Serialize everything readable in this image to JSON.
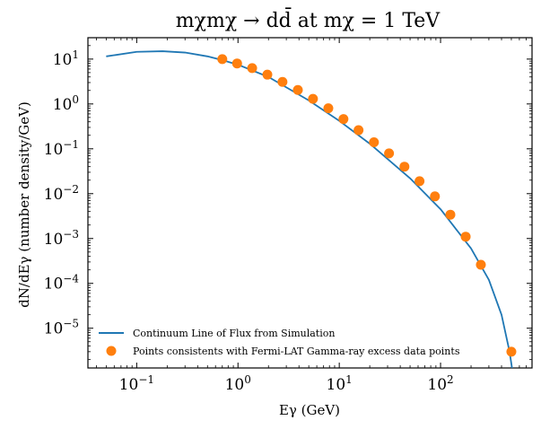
{
  "chart_data": {
    "type": "line",
    "title": "mχmχ → dd̄ at mχ = 1 TeV",
    "xlabel": "Eγ (GeV)",
    "ylabel": "dN/dEγ (number density/GeV)",
    "xscale": "log",
    "yscale": "log",
    "xlim": [
      0.033,
      800
    ],
    "ylim": [
      1.3e-06,
      30
    ],
    "xticks": [
      {
        "value": 0.1,
        "base": "10",
        "exp": "−1"
      },
      {
        "value": 1,
        "base": "10",
        "exp": "0"
      },
      {
        "value": 10,
        "base": "10",
        "exp": "1"
      },
      {
        "value": 100,
        "base": "10",
        "exp": "2"
      }
    ],
    "yticks": [
      {
        "value": 1e-05,
        "base": "10",
        "exp": "−5"
      },
      {
        "value": 0.0001,
        "base": "10",
        "exp": "−4"
      },
      {
        "value": 0.001,
        "base": "10",
        "exp": "−3"
      },
      {
        "value": 0.01,
        "base": "10",
        "exp": "−2"
      },
      {
        "value": 0.1,
        "base": "10",
        "exp": "−1"
      },
      {
        "value": 1,
        "base": "10",
        "exp": "0"
      },
      {
        "value": 10,
        "base": "10",
        "exp": "1"
      }
    ],
    "grid": false,
    "legend_position": "lower-left",
    "series": [
      {
        "name": "Continuum Line of Flux from Simulation",
        "kind": "line",
        "color": "#1f77b4",
        "x": [
          0.05,
          0.1,
          0.18,
          0.3,
          0.5,
          0.7,
          1.0,
          2.0,
          5.0,
          10,
          20,
          50,
          100,
          200,
          300,
          400,
          480,
          510
        ],
        "y": [
          11.5,
          14.5,
          15.0,
          14.0,
          11.5,
          9.5,
          7.5,
          4.0,
          1.2,
          0.42,
          0.13,
          0.022,
          0.0045,
          0.0006,
          0.00012,
          2e-05,
          3e-06,
          1.2e-06
        ]
      },
      {
        "name": "Points consistents with Fermi-LAT Gamma-ray excess data points",
        "kind": "scatter",
        "color": "#ff7f0e",
        "x": [
          0.7,
          0.98,
          1.38,
          1.95,
          2.75,
          3.9,
          5.5,
          7.8,
          11.0,
          15.5,
          22.0,
          31.0,
          44.0,
          62.0,
          88.0,
          125.0,
          177.0,
          250.0,
          500.0
        ],
        "y": [
          10.0,
          8.0,
          6.3,
          4.5,
          3.1,
          2.05,
          1.3,
          0.8,
          0.46,
          0.26,
          0.14,
          0.079,
          0.04,
          0.019,
          0.0087,
          0.0034,
          0.0011,
          0.00026,
          3e-06
        ]
      }
    ]
  }
}
